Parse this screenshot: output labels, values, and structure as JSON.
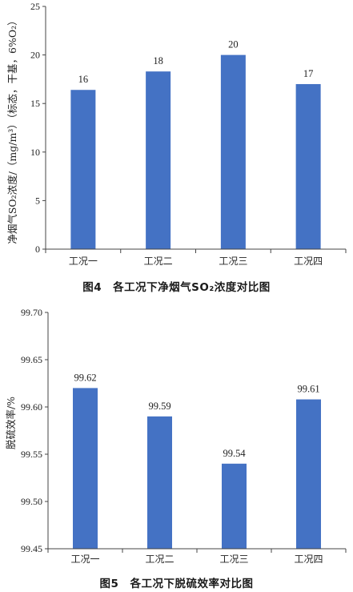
{
  "charts": [
    {
      "caption_text": "图4　各工况下净烟气SO₂浓度对比图",
      "chart_data": {
        "type": "bar",
        "title": "",
        "categories": [
          "工况一",
          "工况二",
          "工况三",
          "工况四"
        ],
        "values": [
          16.4,
          18.3,
          20.0,
          17.0
        ],
        "data_labels": [
          "16",
          "18",
          "20",
          "17"
        ],
        "ylabel": "净烟气SO₂浓度/（mg/m³）（标态，干基，6%O₂）",
        "ylim": [
          0,
          25
        ],
        "yticks": [
          0,
          5,
          10,
          15,
          20,
          25
        ],
        "ytick_labels": [
          "0",
          "5",
          "10",
          "15",
          "20",
          "25"
        ],
        "bar_color": "#4472c4",
        "grid": false
      }
    },
    {
      "caption_text": "图5　各工况下脱硫效率对比图",
      "chart_data": {
        "type": "bar",
        "title": "",
        "categories": [
          "工况一",
          "工况二",
          "工况三",
          "工况四"
        ],
        "values": [
          99.62,
          99.59,
          99.54,
          99.608
        ],
        "data_labels": [
          "99.62",
          "99.59",
          "99.54",
          "99.61"
        ],
        "ylabel": "脱硫效率/%",
        "ylim": [
          99.45,
          99.7
        ],
        "yticks": [
          99.45,
          99.5,
          99.55,
          99.6,
          99.65,
          99.7
        ],
        "ytick_labels": [
          "99.45",
          "99.50",
          "99.55",
          "99.60",
          "99.65",
          "99.70"
        ],
        "bar_color": "#4472c4",
        "grid": false
      }
    }
  ]
}
